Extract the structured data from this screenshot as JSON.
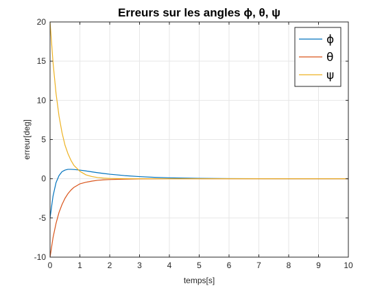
{
  "chart_data": {
    "type": "line",
    "title": "Erreurs sur les angles ϕ, θ, ψ",
    "xlabel": "temps[s]",
    "ylabel": "erreur[deg]",
    "xlim": [
      0,
      10
    ],
    "ylim": [
      -10,
      20
    ],
    "xticks": [
      0,
      1,
      2,
      3,
      4,
      5,
      6,
      7,
      8,
      9,
      10
    ],
    "yticks": [
      -10,
      -5,
      0,
      5,
      10,
      15,
      20
    ],
    "grid": true,
    "legend_position": "top-right",
    "x": [
      0,
      0.1,
      0.2,
      0.3,
      0.4,
      0.5,
      0.6,
      0.7,
      0.8,
      1.0,
      1.2,
      1.4,
      1.6,
      1.8,
      2.0,
      2.5,
      3.0,
      3.5,
      4.0,
      4.5,
      5.0,
      6.0,
      7.0,
      8.0,
      9.0,
      10.0
    ],
    "series": [
      {
        "name": "ϕ",
        "color": "#0072BD",
        "values": [
          -5.0,
          -2.2,
          -0.5,
          0.4,
          0.9,
          1.1,
          1.2,
          1.2,
          1.18,
          1.1,
          1.0,
          0.88,
          0.77,
          0.67,
          0.58,
          0.4,
          0.27,
          0.18,
          0.12,
          0.08,
          0.05,
          0.02,
          0.01,
          0.0,
          0.0,
          0.0
        ]
      },
      {
        "name": "θ",
        "color": "#D95319",
        "values": [
          -10.0,
          -7.5,
          -5.7,
          -4.3,
          -3.3,
          -2.5,
          -1.9,
          -1.45,
          -1.1,
          -0.65,
          -0.45,
          -0.3,
          -0.2,
          -0.14,
          -0.1,
          -0.05,
          -0.02,
          -0.01,
          0.0,
          0.0,
          0.0,
          0.0,
          0.0,
          0.0,
          0.0,
          0.0
        ]
      },
      {
        "name": "ψ",
        "color": "#EDB120",
        "values": [
          20.0,
          14.8,
          10.9,
          8.0,
          5.9,
          4.3,
          3.2,
          2.35,
          1.7,
          0.95,
          0.5,
          0.28,
          0.15,
          0.08,
          0.04,
          0.01,
          0.0,
          0.0,
          0.0,
          0.0,
          0.0,
          0.0,
          0.0,
          0.0,
          0.0,
          0.0
        ]
      }
    ]
  }
}
